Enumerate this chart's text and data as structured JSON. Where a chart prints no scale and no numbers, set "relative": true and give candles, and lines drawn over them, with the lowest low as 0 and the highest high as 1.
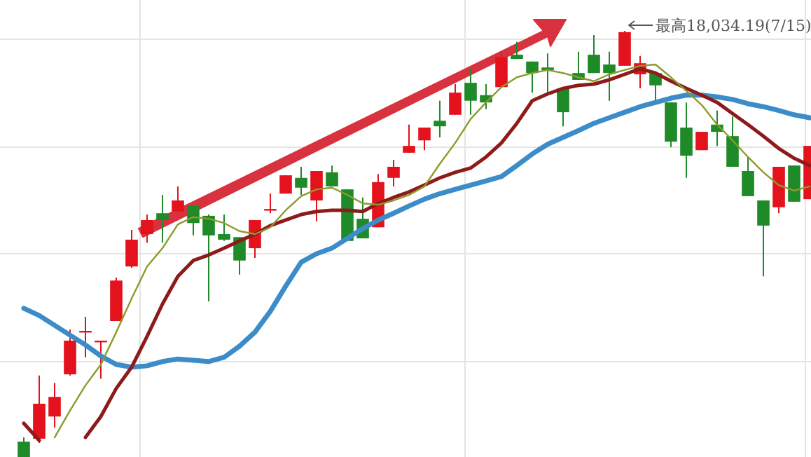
{
  "chart_data": {
    "type": "candlestick",
    "relative": true,
    "grid": true,
    "categories": [
      null,
      null,
      null,
      null,
      null,
      null,
      null,
      null,
      null,
      null,
      null,
      null,
      null,
      null,
      null,
      null,
      null,
      null,
      null,
      null,
      null,
      null,
      null,
      null,
      null,
      null,
      null,
      null,
      null,
      null,
      null,
      null,
      null,
      null,
      null,
      null,
      null,
      null,
      null,
      null,
      null,
      null,
      null,
      null,
      null,
      null,
      null,
      null,
      null,
      null,
      null,
      null
    ],
    "ohlc": [
      [
        0.036,
        0.046,
        0,
        0
      ],
      [
        0.043,
        0.191,
        0.033,
        0.125
      ],
      [
        0.095,
        0.174,
        0.069,
        0.141
      ],
      [
        0.194,
        0.299,
        0.191,
        0.273
      ],
      [
        0.296,
        0.329,
        0.234,
        0.296
      ],
      [
        0.273,
        0.273,
        0.184,
        0.273
      ],
      [
        0.319,
        0.421,
        0.319,
        0.414
      ],
      [
        0.447,
        0.533,
        0.444,
        0.51
      ],
      [
        0.523,
        0.569,
        0.503,
        0.556
      ],
      [
        0.572,
        0.615,
        0.503,
        0.556
      ],
      [
        0.576,
        0.635,
        0.576,
        0.602
      ],
      [
        0.589,
        0.589,
        0.52,
        0.549
      ],
      [
        0.566,
        0.569,
        0.365,
        0.52
      ],
      [
        0.523,
        0.569,
        0.507,
        0.51
      ],
      [
        0.516,
        0.516,
        0.428,
        0.461
      ],
      [
        0.49,
        0.556,
        0.467,
        0.556
      ],
      [
        0.579,
        0.618,
        0.572,
        0.582
      ],
      [
        0.618,
        0.661,
        0.618,
        0.661
      ],
      [
        0.655,
        0.681,
        0.615,
        0.632
      ],
      [
        0.602,
        0.671,
        0.553,
        0.671
      ],
      [
        0.668,
        0.684,
        0.635,
        0.635
      ],
      [
        0.628,
        0.628,
        0.507,
        0.507
      ],
      [
        0.559,
        0.609,
        0.513,
        0.513
      ],
      [
        0.539,
        0.664,
        0.539,
        0.645
      ],
      [
        0.655,
        0.697,
        0.635,
        0.681
      ],
      [
        0.714,
        0.78,
        0.714,
        0.73
      ],
      [
        0.743,
        0.773,
        0.72,
        0.773
      ],
      [
        0.789,
        0.836,
        0.75,
        0.776
      ],
      [
        0.803,
        0.875,
        0.803,
        0.855
      ],
      [
        0.878,
        0.911,
        0.803,
        0.836
      ],
      [
        0.849,
        0.875,
        0.816,
        0.832
      ],
      [
        0.868,
        0.951,
        0.868,
        0.938
      ],
      [
        0.944,
        0.974,
        0.934,
        0.934
      ],
      [
        0.928,
        0.928,
        0.855,
        0.901
      ],
      [
        0.914,
        0.947,
        0.852,
        0.908
      ],
      [
        0.865,
        0.865,
        0.776,
        0.809
      ],
      [
        0.901,
        0.951,
        0.885,
        0.885
      ],
      [
        0.944,
        0.99,
        0.901,
        0.901
      ],
      [
        0.921,
        0.951,
        0.836,
        0.901
      ],
      [
        0.918,
        1,
        0.918,
        0.997
      ],
      [
        0.898,
        0.941,
        0.865,
        0.924
      ],
      [
        0.901,
        0.901,
        0.836,
        0.872
      ],
      [
        0.832,
        0.832,
        0.727,
        0.74
      ],
      [
        0.773,
        0.832,
        0.655,
        0.707
      ],
      [
        0.72,
        0.763,
        0.72,
        0.763
      ],
      [
        0.78,
        0.813,
        0.73,
        0.763
      ],
      [
        0.753,
        0.799,
        0.681,
        0.681
      ],
      [
        0.671,
        0.704,
        0.612,
        0.612
      ],
      [
        0.602,
        0.602,
        0.424,
        0.543
      ],
      [
        0.586,
        0.681,
        0.572,
        0.681
      ],
      [
        0.684,
        0.684,
        0.599,
        0.599
      ],
      [
        0.605,
        0.73,
        0.605,
        0.73
      ]
    ],
    "colors": [
      "#1e8a28",
      "#e3121c",
      "#e3121c",
      "#e3121c",
      "#e3121c",
      "#e3121c",
      "#e3121c",
      "#e3121c",
      "#e3121c",
      "#1e8a28",
      "#e3121c",
      "#1e8a28",
      "#1e8a28",
      "#1e8a28",
      "#1e8a28",
      "#e3121c",
      "#e3121c",
      "#e3121c",
      "#1e8a28",
      "#e3121c",
      "#1e8a28",
      "#1e8a28",
      "#1e8a28",
      "#e3121c",
      "#e3121c",
      "#e3121c",
      "#e3121c",
      "#1e8a28",
      "#e3121c",
      "#1e8a28",
      "#1e8a28",
      "#e3121c",
      "#1e8a28",
      "#1e8a28",
      "#1e8a28",
      "#1e8a28",
      "#1e8a28",
      "#1e8a28",
      "#1e8a28",
      "#e3121c",
      "#e3121c",
      "#1e8a28",
      "#1e8a28",
      "#1e8a28",
      "#e3121c",
      "#1e8a28",
      "#1e8a28",
      "#1e8a28",
      "#1e8a28",
      "#e3121c",
      "#1e8a28",
      "#e3121c"
    ],
    "series": [
      {
        "type": "line",
        "color": "#3b8cc9",
        "values": [
          0.349,
          0.332,
          0.309,
          0.286,
          0.263,
          0.237,
          0.217,
          0.211,
          0.214,
          0.224,
          0.23,
          0.227,
          0.224,
          0.234,
          0.26,
          0.293,
          0.342,
          0.401,
          0.457,
          0.477,
          0.49,
          0.513,
          0.536,
          0.556,
          0.572,
          0.589,
          0.605,
          0.618,
          0.628,
          0.638,
          0.648,
          0.658,
          0.684,
          0.711,
          0.734,
          0.75,
          0.766,
          0.783,
          0.796,
          0.809,
          0.822,
          0.832,
          0.842,
          0.849,
          0.849,
          0.845,
          0.839,
          0.829,
          0.822,
          0.813,
          0.803,
          0.796
        ]
      },
      {
        "type": "line",
        "color": "#8e1a1a",
        "values": [
          0.079,
          0.039,
          null,
          null,
          0.046,
          0.095,
          0.161,
          0.211,
          0.283,
          0.359,
          0.424,
          0.461,
          0.474,
          0.49,
          0.507,
          0.523,
          0.543,
          0.556,
          0.569,
          0.576,
          0.579,
          0.579,
          0.576,
          0.595,
          0.609,
          0.622,
          0.638,
          0.655,
          0.668,
          0.678,
          0.704,
          0.737,
          0.783,
          0.836,
          0.852,
          0.865,
          0.872,
          0.875,
          0.885,
          0.898,
          0.911,
          0.901,
          0.882,
          0.865,
          0.849,
          0.832,
          0.806,
          0.78,
          0.753,
          0.724,
          0.701,
          0.684
        ]
      },
      {
        "type": "line",
        "color": "#8c9a2c",
        "values": [
          null,
          null,
          0.046,
          0.109,
          0.168,
          0.217,
          0.293,
          0.372,
          0.447,
          0.49,
          0.546,
          0.563,
          0.559,
          0.549,
          0.53,
          0.523,
          0.539,
          0.579,
          0.612,
          0.628,
          0.632,
          0.615,
          0.595,
          0.592,
          0.602,
          0.615,
          0.635,
          0.688,
          0.737,
          0.793,
          0.832,
          0.868,
          0.891,
          0.901,
          0.908,
          0.901,
          0.891,
          0.882,
          0.898,
          0.908,
          0.918,
          0.921,
          0.891,
          0.859,
          0.826,
          0.78,
          0.743,
          0.704,
          0.668,
          0.638,
          0.625,
          0.635
        ]
      }
    ],
    "annotations": [
      "最高18,034.19(7/15)"
    ]
  }
}
